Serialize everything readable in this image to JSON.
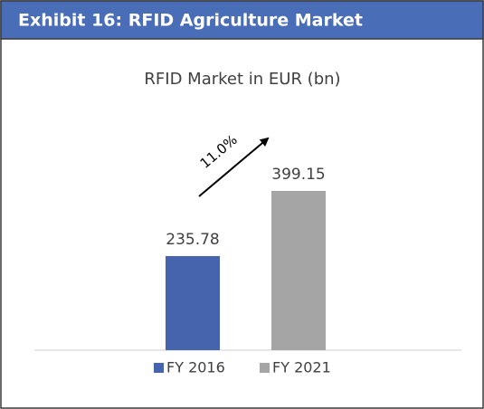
{
  "header": {
    "title": "Exhibit 16: RFID Agriculture Market"
  },
  "chart_data": {
    "type": "bar",
    "title": "RFID Market in EUR (bn)",
    "categories": [
      "FY 2016",
      "FY 2021"
    ],
    "values": [
      235.78,
      399.15
    ],
    "colors": [
      "#4664ad",
      "#a5a5a5"
    ],
    "ylim": [
      0,
      500
    ],
    "annotation": "11.0%",
    "legend": "bottom"
  }
}
